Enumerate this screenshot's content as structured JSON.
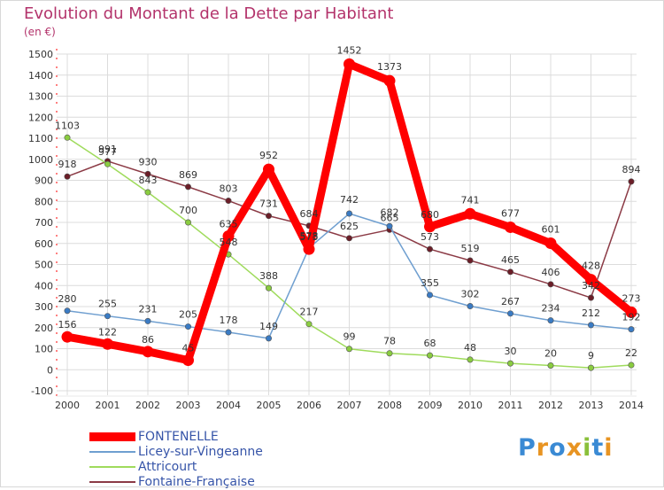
{
  "title": "Evolution du Montant de la Dette par Habitant",
  "unit": "(en €)",
  "logo": {
    "text": "Proxiti",
    "colors": [
      "#3a8ad4",
      "#e89422",
      "#3a8ad4",
      "#e89422",
      "#8ac03a",
      "#3a8ad4",
      "#e89422"
    ]
  },
  "chart_data": {
    "type": "line",
    "x": [
      "2000",
      "2001",
      "2002",
      "2003",
      "2004",
      "2005",
      "2006",
      "2007",
      "2008",
      "2009",
      "2010",
      "2011",
      "2012",
      "2013",
      "2014"
    ],
    "ylim": [
      -100,
      1500
    ],
    "yticks": [
      -100,
      0,
      100,
      200,
      300,
      400,
      500,
      600,
      700,
      800,
      900,
      1000,
      1100,
      1200,
      1300,
      1400,
      1500
    ],
    "grid": true,
    "legend_position": "bottom-left",
    "series": [
      {
        "name": "FONTENELLE",
        "color": "#ff0000",
        "marker": "#ff0000",
        "width": 9,
        "values": [
          156,
          122,
          86,
          45,
          635,
          952,
          573,
          1452,
          1373,
          680,
          741,
          677,
          601,
          428,
          273
        ]
      },
      {
        "name": "Licey-sur-Vingeanne",
        "color": "#6f9fd0",
        "marker": "#3a7bc4",
        "width": 1.5,
        "values": [
          280,
          255,
          231,
          205,
          178,
          149,
          578,
          742,
          682,
          355,
          302,
          267,
          234,
          212,
          192
        ]
      },
      {
        "name": "Attricourt",
        "color": "#9fdb5c",
        "marker": "#8acc40",
        "width": 1.5,
        "values": [
          1103,
          977,
          843,
          700,
          548,
          388,
          217,
          99,
          78,
          68,
          48,
          30,
          20,
          9,
          22
        ]
      },
      {
        "name": "Fontaine-Française",
        "color": "#8b3a45",
        "marker": "#6b1e28",
        "width": 1.5,
        "values": [
          918,
          991,
          930,
          869,
          803,
          731,
          684,
          625,
          665,
          573,
          519,
          465,
          406,
          342,
          894
        ]
      }
    ],
    "labels": [
      {
        "s": 0,
        "i": 0,
        "t": "156",
        "dx": 0,
        "dy": -10
      },
      {
        "s": 0,
        "i": 1,
        "t": "122",
        "dx": 0,
        "dy": -10
      },
      {
        "s": 0,
        "i": 2,
        "t": "86",
        "dx": 0,
        "dy": -10
      },
      {
        "s": 0,
        "i": 3,
        "t": "45",
        "dx": 0,
        "dy": -10
      },
      {
        "s": 0,
        "i": 4,
        "t": "635",
        "dx": 0,
        "dy": -10
      },
      {
        "s": 0,
        "i": 5,
        "t": "952",
        "dx": 0,
        "dy": -12
      },
      {
        "s": 0,
        "i": 6,
        "t": "573",
        "dx": 0,
        "dy": -10
      },
      {
        "s": 0,
        "i": 7,
        "t": "1452",
        "dx": 0,
        "dy": -12
      },
      {
        "s": 0,
        "i": 8,
        "t": "1373",
        "dx": 0,
        "dy": -12
      },
      {
        "s": 0,
        "i": 9,
        "t": "680",
        "dx": 0,
        "dy": -10
      },
      {
        "s": 0,
        "i": 10,
        "t": "741",
        "dx": 0,
        "dy": -12
      },
      {
        "s": 0,
        "i": 11,
        "t": "677",
        "dx": 0,
        "dy": -12
      },
      {
        "s": 0,
        "i": 12,
        "t": "601",
        "dx": 0,
        "dy": -12
      },
      {
        "s": 0,
        "i": 13,
        "t": "428",
        "dx": 0,
        "dy": -12
      },
      {
        "s": 0,
        "i": 14,
        "t": "273",
        "dx": 0,
        "dy": -12
      },
      {
        "s": 1,
        "i": 0,
        "t": "280",
        "dx": 0,
        "dy": -10
      },
      {
        "s": 1,
        "i": 1,
        "t": "255",
        "dx": 0,
        "dy": -10
      },
      {
        "s": 1,
        "i": 2,
        "t": "231",
        "dx": 0,
        "dy": -10
      },
      {
        "s": 1,
        "i": 3,
        "t": "205",
        "dx": 0,
        "dy": -10
      },
      {
        "s": 1,
        "i": 4,
        "t": "178",
        "dx": 0,
        "dy": -10
      },
      {
        "s": 1,
        "i": 5,
        "t": "149",
        "dx": 0,
        "dy": -10
      },
      {
        "s": 1,
        "i": 6,
        "t": "578",
        "dx": 0,
        "dy": -10
      },
      {
        "s": 1,
        "i": 7,
        "t": "742",
        "dx": 0,
        "dy": -12
      },
      {
        "s": 1,
        "i": 8,
        "t": "682",
        "dx": 0,
        "dy": -12
      },
      {
        "s": 1,
        "i": 9,
        "t": "355",
        "dx": 0,
        "dy": -10
      },
      {
        "s": 1,
        "i": 10,
        "t": "302",
        "dx": 0,
        "dy": -10
      },
      {
        "s": 1,
        "i": 11,
        "t": "267",
        "dx": 0,
        "dy": -10
      },
      {
        "s": 1,
        "i": 12,
        "t": "234",
        "dx": 0,
        "dy": -10
      },
      {
        "s": 1,
        "i": 13,
        "t": "212",
        "dx": 0,
        "dy": -10
      },
      {
        "s": 1,
        "i": 14,
        "t": "192",
        "dx": 0,
        "dy": -10
      },
      {
        "s": 2,
        "i": 0,
        "t": "1103",
        "dx": 0,
        "dy": -10
      },
      {
        "s": 2,
        "i": 1,
        "t": "977",
        "dx": 0,
        "dy": -10
      },
      {
        "s": 2,
        "i": 2,
        "t": "843",
        "dx": 0,
        "dy": -10
      },
      {
        "s": 2,
        "i": 3,
        "t": "700",
        "dx": 0,
        "dy": -10
      },
      {
        "s": 2,
        "i": 4,
        "t": "548",
        "dx": 0,
        "dy": -10
      },
      {
        "s": 2,
        "i": 5,
        "t": "388",
        "dx": 0,
        "dy": -10
      },
      {
        "s": 2,
        "i": 6,
        "t": "217",
        "dx": 0,
        "dy": -10
      },
      {
        "s": 2,
        "i": 7,
        "t": "99",
        "dx": 0,
        "dy": -10
      },
      {
        "s": 2,
        "i": 8,
        "t": "78",
        "dx": 0,
        "dy": -10
      },
      {
        "s": 2,
        "i": 9,
        "t": "68",
        "dx": 0,
        "dy": -10
      },
      {
        "s": 2,
        "i": 10,
        "t": "48",
        "dx": 0,
        "dy": -10
      },
      {
        "s": 2,
        "i": 11,
        "t": "30",
        "dx": 0,
        "dy": -10
      },
      {
        "s": 2,
        "i": 12,
        "t": "20",
        "dx": 0,
        "dy": -10
      },
      {
        "s": 2,
        "i": 13,
        "t": "9",
        "dx": 0,
        "dy": -10
      },
      {
        "s": 2,
        "i": 14,
        "t": "22",
        "dx": 0,
        "dy": -10
      },
      {
        "s": 3,
        "i": 0,
        "t": "918",
        "dx": 0,
        "dy": -10
      },
      {
        "s": 3,
        "i": 1,
        "t": "991",
        "dx": 0,
        "dy": -10
      },
      {
        "s": 3,
        "i": 2,
        "t": "930",
        "dx": 0,
        "dy": -10
      },
      {
        "s": 3,
        "i": 3,
        "t": "869",
        "dx": 0,
        "dy": -10
      },
      {
        "s": 3,
        "i": 4,
        "t": "803",
        "dx": 0,
        "dy": -10
      },
      {
        "s": 3,
        "i": 5,
        "t": "731",
        "dx": 0,
        "dy": -10
      },
      {
        "s": 3,
        "i": 6,
        "t": "684",
        "dx": 0,
        "dy": -10
      },
      {
        "s": 3,
        "i": 7,
        "t": "625",
        "dx": 0,
        "dy": -10
      },
      {
        "s": 3,
        "i": 8,
        "t": "665",
        "dx": 0,
        "dy": -10
      },
      {
        "s": 3,
        "i": 9,
        "t": "573",
        "dx": 0,
        "dy": -10
      },
      {
        "s": 3,
        "i": 10,
        "t": "519",
        "dx": 0,
        "dy": -10
      },
      {
        "s": 3,
        "i": 11,
        "t": "465",
        "dx": 0,
        "dy": -10
      },
      {
        "s": 3,
        "i": 12,
        "t": "406",
        "dx": 0,
        "dy": -10
      },
      {
        "s": 3,
        "i": 13,
        "t": "342",
        "dx": 0,
        "dy": -10
      },
      {
        "s": 3,
        "i": 14,
        "t": "894",
        "dx": 0,
        "dy": -10
      }
    ]
  }
}
